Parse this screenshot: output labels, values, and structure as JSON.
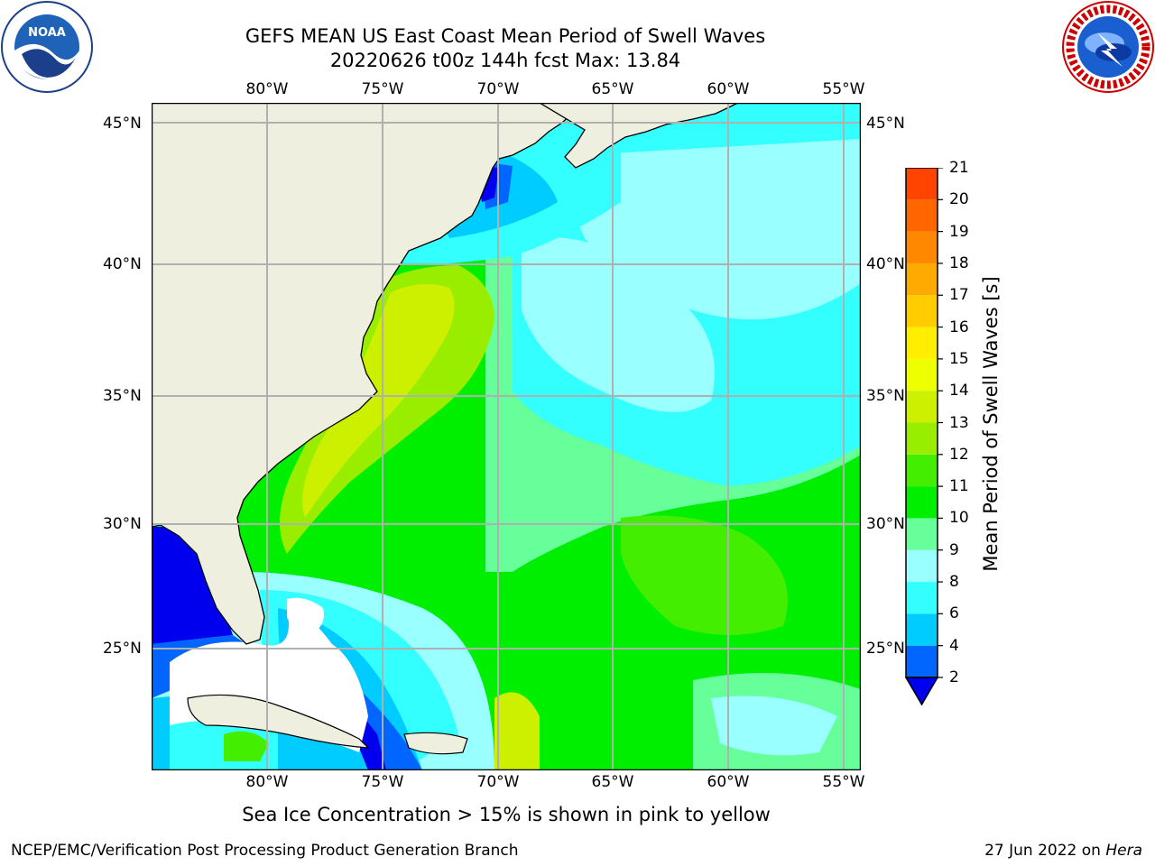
{
  "header": {
    "title_line1": "GEFS MEAN US East Coast Mean Period of Swell Waves",
    "title_line2": "20220626 t00z 144h fcst   Max: 13.84"
  },
  "logos": {
    "left": {
      "name": "NOAA",
      "icon": "noaa-seal-icon",
      "ring_text": "NATIONAL OCEANIC AND ATMOSPHERIC ADMINISTRATION · U.S. DEPARTMENT OF COMMERCE"
    },
    "right": {
      "name": "NATIONAL WEATHER SERVICE",
      "icon": "nws-seal-icon"
    }
  },
  "map": {
    "region": "US East Coast",
    "x_ticks": [
      "80°W",
      "75°W",
      "70°W",
      "65°W",
      "60°W",
      "55°W"
    ],
    "y_ticks": [
      "45°N",
      "40°N",
      "35°N",
      "30°N",
      "25°N"
    ],
    "land_color": "#efefdf",
    "no_data_color": "#ffffff",
    "grid_color": "#b0b0b0"
  },
  "colorbar": {
    "label": "Mean Period of Swell Waves [s]",
    "ticks": [
      "2",
      "4",
      "6",
      "8",
      "9",
      "10",
      "11",
      "12",
      "13",
      "14",
      "15",
      "16",
      "17",
      "18",
      "19",
      "20",
      "21"
    ],
    "colors": [
      "#0066ff",
      "#00ccff",
      "#33ffff",
      "#99ffff",
      "#66ff99",
      "#00ee00",
      "#44ee00",
      "#99ee00",
      "#ccf000",
      "#eeff00",
      "#ffee00",
      "#ffcc00",
      "#ffaa00",
      "#ff8800",
      "#ff6600",
      "#ff4400",
      "#ff1100"
    ],
    "under_color": "#0000ee"
  },
  "footnote": "Sea Ice Concentration > 15% is shown in pink to yellow",
  "footer": {
    "left": "NCEP/EMC/Verification Post Processing Product Generation Branch",
    "right_date": "27 Jun 2022",
    "right_on": "on",
    "right_host": "Hera"
  }
}
